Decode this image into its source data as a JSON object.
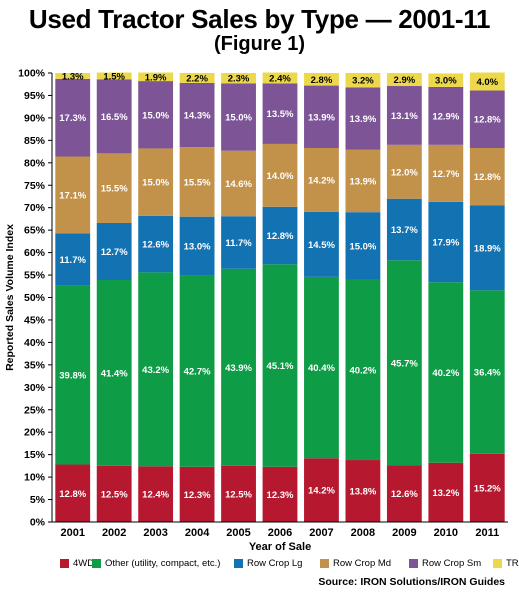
{
  "header": {
    "title": "Used Tractor Sales by Type — 2001-11",
    "subtitle": "(Figure 1)"
  },
  "source": "Source: IRON Solutions/IRON Guides",
  "chart_data": {
    "type": "bar",
    "stacked": true,
    "xlabel": "Year of Sale",
    "ylabel": "Reported Sales Volume Index",
    "ylim": [
      0,
      100
    ],
    "y_ticks": [
      "0%",
      "5%",
      "10%",
      "15%",
      "20%",
      "25%",
      "30%",
      "35%",
      "40%",
      "45%",
      "50%",
      "55%",
      "60%",
      "65%",
      "70%",
      "75%",
      "80%",
      "85%",
      "90%",
      "95%",
      "100%"
    ],
    "categories": [
      "2001",
      "2002",
      "2003",
      "2004",
      "2005",
      "2006",
      "2007",
      "2008",
      "2009",
      "2010",
      "2011"
    ],
    "legend_position": "bottom",
    "series": [
      {
        "name": "4WD",
        "color": "#b5182f",
        "values": [
          12.8,
          12.5,
          12.4,
          12.3,
          12.5,
          12.3,
          14.2,
          13.8,
          12.6,
          13.2,
          15.2
        ],
        "labels": [
          "12.8%",
          "12.5%",
          "12.4%",
          "12.3%",
          "12.5%",
          "12.3%",
          "14.2%",
          "13.8%",
          "12.6%",
          "13.2%",
          "15.2%"
        ]
      },
      {
        "name": "Other (utility, compact, etc.)",
        "color": "#0e9c46",
        "values": [
          39.8,
          41.4,
          43.2,
          42.7,
          43.9,
          45.1,
          40.4,
          40.2,
          45.7,
          40.2,
          36.4
        ],
        "labels": [
          "39.8%",
          "41.4%",
          "43.2%",
          "42.7%",
          "43.9%",
          "45.1%",
          "40.4%",
          "40.2%",
          "45.7%",
          "40.2%",
          "36.4%"
        ]
      },
      {
        "name": "Row Crop Lg",
        "color": "#1272b2",
        "values": [
          11.7,
          12.7,
          12.6,
          13.0,
          11.7,
          12.8,
          14.5,
          15.0,
          13.7,
          17.9,
          18.9
        ],
        "labels": [
          "11.7%",
          "12.7%",
          "12.6%",
          "13.0%",
          "11.7%",
          "12.8%",
          "14.5%",
          "15.0%",
          "13.7%",
          "17.9%",
          "18.9%"
        ]
      },
      {
        "name": "Row Crop Md",
        "color": "#c3924a",
        "values": [
          17.1,
          15.5,
          15.0,
          15.5,
          14.6,
          14.0,
          14.2,
          13.9,
          12.0,
          12.7,
          12.8
        ],
        "labels": [
          "17.1%",
          "15.5%",
          "15.0%",
          "15.5%",
          "14.6%",
          "14.0%",
          "14.2%",
          "13.9%",
          "12.0%",
          "12.7%",
          "12.8%"
        ]
      },
      {
        "name": "Row Crop Sm",
        "color": "#7d5496",
        "values": [
          17.3,
          16.5,
          15.0,
          14.3,
          15.0,
          13.5,
          13.9,
          13.9,
          13.1,
          12.9,
          12.8
        ],
        "labels": [
          "17.3%",
          "16.5%",
          "15.0%",
          "14.3%",
          "15.0%",
          "13.5%",
          "13.9%",
          "13.9%",
          "13.1%",
          "12.9%",
          "12.8%"
        ]
      },
      {
        "name": "TRACK",
        "color": "#ecd84a",
        "values": [
          1.3,
          1.5,
          1.9,
          2.2,
          2.3,
          2.4,
          2.8,
          3.2,
          2.9,
          3.0,
          4.0
        ],
        "labels": [
          "1.3%",
          "1.5%",
          "1.9%",
          "2.2%",
          "2.3%",
          "2.4%",
          "2.8%",
          "3.2%",
          "2.9%",
          "3.0%",
          "4.0%"
        ]
      }
    ]
  }
}
